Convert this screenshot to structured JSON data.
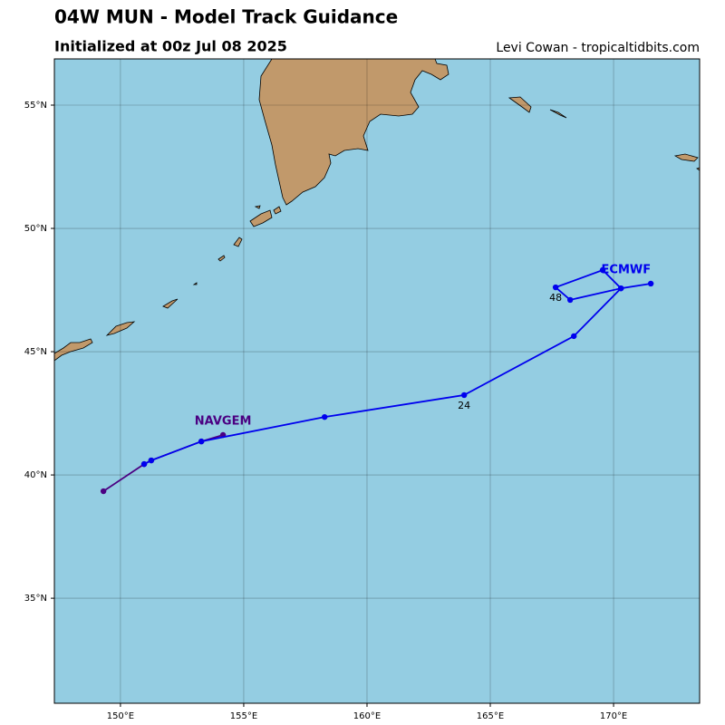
{
  "chart_data": {
    "type": "track_map",
    "title": "04W MUN - Model Track Guidance",
    "subtitle": "Initialized at 00z Jul 08 2025",
    "credit": "Levi Cowan - tropicaltidbits.com",
    "xlim": [
      147.32,
      173.49
    ],
    "ylim": [
      30.74,
      56.875
    ],
    "xticks": [
      {
        "value": 150,
        "label": "150°E"
      },
      {
        "value": 155,
        "label": "155°E"
      },
      {
        "value": 160,
        "label": "160°E"
      },
      {
        "value": 165,
        "label": "165°E"
      },
      {
        "value": 170,
        "label": "170°E"
      }
    ],
    "yticks": [
      {
        "value": 35,
        "label": "35°N"
      },
      {
        "value": 40,
        "label": "40°N"
      },
      {
        "value": 45,
        "label": "45°N"
      },
      {
        "value": 50,
        "label": "50°N"
      },
      {
        "value": 55,
        "label": "55°N"
      }
    ],
    "grid": true,
    "series": [
      {
        "name": "NAVGEM",
        "color": "#4b0082",
        "x": [
          149.31,
          150.96,
          151.25,
          153.28,
          154.16
        ],
        "y": [
          39.34,
          40.44,
          40.59,
          41.36,
          41.62
        ],
        "labels": [
          null,
          null,
          null,
          null,
          null
        ]
      },
      {
        "name": "ECMWF",
        "color": "#0000ee",
        "x": [
          150.96,
          151.25,
          153.28,
          158.28,
          163.94,
          168.39,
          170.3,
          168.24,
          167.65,
          169.56,
          170.3,
          171.51
        ],
        "y": [
          40.44,
          40.59,
          41.36,
          42.35,
          43.24,
          45.63,
          47.57,
          47.1,
          47.61,
          48.31,
          47.57,
          47.76
        ],
        "labels": [
          null,
          null,
          null,
          null,
          "24",
          null,
          null,
          null,
          "48",
          null,
          null,
          null
        ]
      }
    ]
  }
}
